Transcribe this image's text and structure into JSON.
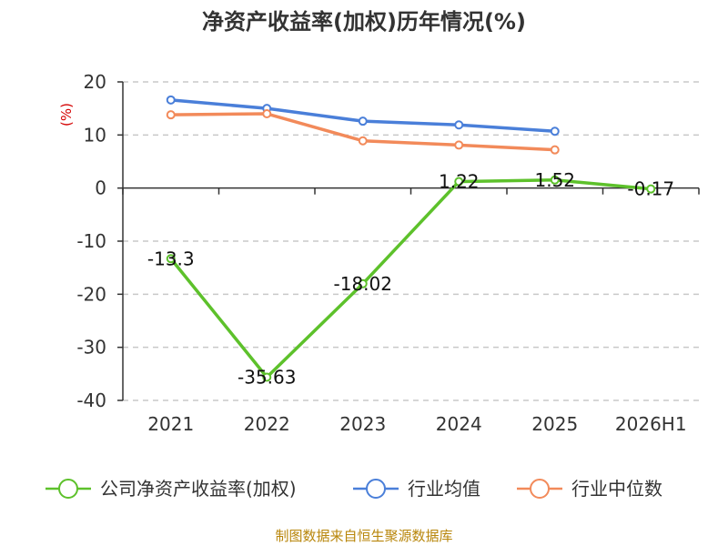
{
  "chart_data": {
    "type": "line",
    "title": "净资产收益率(加权)历年情况(%)",
    "ylabel": "(%)",
    "categories": [
      "2021",
      "2022",
      "2023",
      "2024",
      "2025",
      "2026H1"
    ],
    "ylim": [
      -40,
      20
    ],
    "yticks": [
      20,
      10,
      0,
      -10,
      -20,
      -30,
      -40
    ],
    "grid": true,
    "legend_position": "bottom",
    "series": [
      {
        "name": "公司净资产收益率(加权)",
        "color": "#5dc12b",
        "values": [
          -13.3,
          -35.63,
          -18.02,
          1.22,
          1.52,
          -0.17
        ],
        "labels": [
          "-13.3",
          "-35.63",
          "-18.02",
          "1.22",
          "1.52",
          "-0.17"
        ]
      },
      {
        "name": "行业均值",
        "color": "#4a7fd9",
        "values": [
          16.6,
          15.0,
          12.6,
          11.9,
          10.7,
          null
        ]
      },
      {
        "name": "行业中位数",
        "color": "#f28a5a",
        "values": [
          13.8,
          14.0,
          8.9,
          8.1,
          7.2,
          null
        ]
      }
    ]
  },
  "source": "制图数据来自恒生聚源数据库"
}
